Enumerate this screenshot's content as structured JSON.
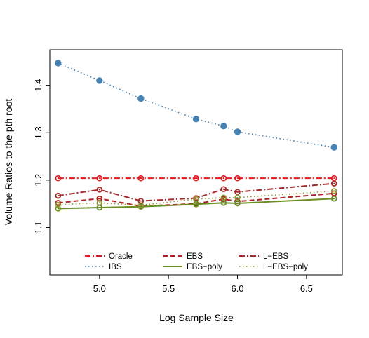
{
  "chart_data": {
    "type": "line",
    "title": "",
    "xlabel": "Log Sample Size",
    "ylabel": "Volume Ratios to the pth root",
    "xlim": [
      4.64,
      6.76
    ],
    "ylim": [
      1.0,
      1.475
    ],
    "x_ticks": [
      5.0,
      5.5,
      6.0,
      6.5
    ],
    "x_tick_labels": [
      "5.0",
      "5.5",
      "6.0",
      "6.5"
    ],
    "y_ticks": [
      1.1,
      1.2,
      1.3,
      1.4
    ],
    "y_tick_labels": [
      "1.1",
      "1.2",
      "1.3",
      "1.4"
    ],
    "grid": false,
    "legend_position": "bottom-inside",
    "x": [
      4.7,
      5.0,
      5.3,
      5.7,
      5.9,
      6.0,
      6.7
    ],
    "series": [
      {
        "name": "Oracle",
        "color": "#e31a1c",
        "dash": "dashdot",
        "width": 2,
        "marker": "circle-open",
        "values": [
          1.204,
          1.204,
          1.204,
          1.204,
          1.204,
          1.204,
          1.204
        ]
      },
      {
        "name": "IBS",
        "color": "#4682b4",
        "dash": "dotted",
        "width": 1.6,
        "marker": "circle-filled",
        "values": [
          1.447,
          1.41,
          1.372,
          1.329,
          1.314,
          1.302,
          1.269
        ]
      },
      {
        "name": "EBS",
        "color": "#b22222",
        "dash": "dashed",
        "width": 2,
        "marker": "circle-open",
        "values": [
          1.152,
          1.161,
          1.145,
          1.15,
          1.16,
          1.155,
          1.172
        ]
      },
      {
        "name": "EBS−poly",
        "color": "#6b8e23",
        "dash": "solid",
        "width": 2,
        "marker": "circle-open",
        "values": [
          1.14,
          1.142,
          1.144,
          1.149,
          1.152,
          1.151,
          1.161
        ]
      },
      {
        "name": "L−EBS",
        "color": "#a52a2a",
        "dash": "dashdot",
        "width": 2,
        "marker": "circle-open",
        "values": [
          1.167,
          1.18,
          1.156,
          1.162,
          1.181,
          1.175,
          1.193
        ]
      },
      {
        "name": "L−EBS−poly",
        "color": "#8f9a3a",
        "dash": "dotted",
        "width": 1.6,
        "marker": "circle-open",
        "values": [
          1.148,
          1.152,
          1.147,
          1.16,
          1.163,
          1.163,
          1.177
        ]
      }
    ]
  }
}
